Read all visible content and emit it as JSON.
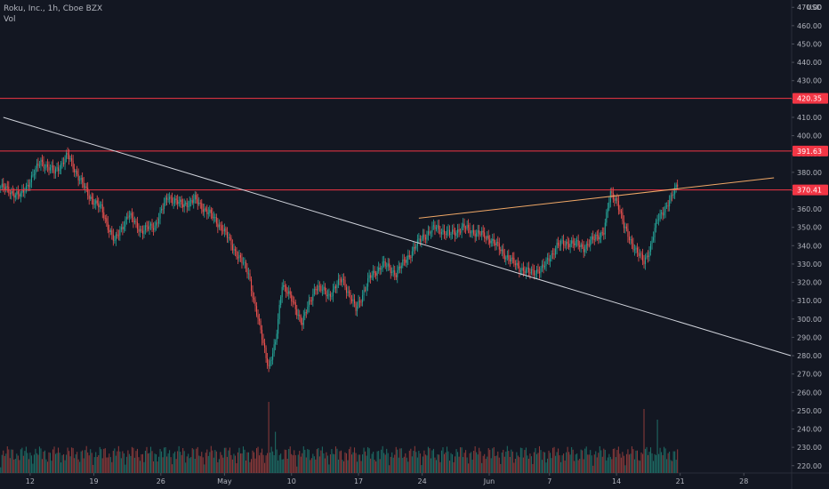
{
  "header": {
    "title": "Roku, Inc., 1h, Cboe BZX",
    "volume_label": "Vol",
    "currency": "USD"
  },
  "colors": {
    "background": "#131722",
    "up": "#26a69a",
    "down": "#ef5350",
    "volume_up": "#1e6b64",
    "volume_down": "#8a3a3a",
    "level_line": "#f23645",
    "trend_down": "#d1d4dc",
    "trend_up": "#f0a867",
    "grid": "#1e222d",
    "axis_text": "#b2b5be"
  },
  "chart_data": {
    "type": "candlestick",
    "title": "Roku, Inc., 1h, Cboe BZX",
    "ylim": [
      216,
      474
    ],
    "y_ticks": [
      470,
      460,
      450,
      440,
      430,
      420,
      410,
      400,
      390,
      380,
      370,
      360,
      350,
      340,
      330,
      320,
      310,
      300,
      290,
      280,
      270,
      260,
      250,
      240,
      230,
      220
    ],
    "y_tick_labels": [
      "470.00",
      "460.00",
      "450.00",
      "440.00",
      "430.00",
      "420.00",
      "410.00",
      "400.00",
      "390.00",
      "380.00",
      "370.00",
      "360.00",
      "350.00",
      "340.00",
      "330.00",
      "320.00",
      "310.00",
      "300.00",
      "290.00",
      "280.00",
      "270.00",
      "260.00",
      "250.00",
      "240.00",
      "230.00",
      "220.00"
    ],
    "x_ticks": [
      {
        "label": "12",
        "bar": 4
      },
      {
        "label": "19",
        "bar": 13.5
      },
      {
        "label": "26",
        "bar": 23.5
      },
      {
        "label": "May",
        "bar": 33
      },
      {
        "label": "10",
        "bar": 43
      },
      {
        "label": "17",
        "bar": 53
      },
      {
        "label": "24",
        "bar": 62.5
      },
      {
        "label": "Jun",
        "bar": 72.5
      },
      {
        "label": "7",
        "bar": 81.5
      },
      {
        "label": "14",
        "bar": 91.5
      },
      {
        "label": "21",
        "bar": 101
      },
      {
        "label": "28",
        "bar": 110.5
      }
    ],
    "x_bars_visible": 118,
    "price_keypoints": [
      [
        0,
        372
      ],
      [
        3,
        367
      ],
      [
        6,
        386
      ],
      [
        8,
        380
      ],
      [
        10,
        389
      ],
      [
        13,
        368
      ],
      [
        15,
        360
      ],
      [
        17,
        342
      ],
      [
        19,
        357
      ],
      [
        21,
        348
      ],
      [
        23,
        351
      ],
      [
        25,
        367
      ],
      [
        27,
        362
      ],
      [
        29,
        365
      ],
      [
        31,
        358
      ],
      [
        33,
        350
      ],
      [
        35,
        337
      ],
      [
        37,
        325
      ],
      [
        38,
        306
      ],
      [
        40,
        274
      ],
      [
        41,
        286
      ],
      [
        42,
        320
      ],
      [
        44,
        306
      ],
      [
        45,
        298
      ],
      [
        47,
        318
      ],
      [
        49,
        313
      ],
      [
        51,
        322
      ],
      [
        53,
        305
      ],
      [
        55,
        322
      ],
      [
        57,
        330
      ],
      [
        59,
        325
      ],
      [
        61,
        335
      ],
      [
        63,
        345
      ],
      [
        65,
        350
      ],
      [
        67,
        346
      ],
      [
        69,
        350
      ],
      [
        71,
        347
      ],
      [
        73,
        344
      ],
      [
        75,
        336
      ],
      [
        77,
        329
      ],
      [
        79,
        325
      ],
      [
        81,
        328
      ],
      [
        83,
        340
      ],
      [
        85,
        342
      ],
      [
        87,
        339
      ],
      [
        89,
        345
      ],
      [
        90,
        348
      ],
      [
        91,
        368
      ],
      [
        92,
        365
      ],
      [
        93,
        350
      ],
      [
        95,
        336
      ],
      [
        96,
        331
      ],
      [
        97,
        340
      ],
      [
        98,
        354
      ],
      [
        99,
        360
      ],
      [
        100,
        365
      ],
      [
        101,
        374
      ]
    ],
    "volume_spikes": [
      {
        "bar": 40,
        "value": 1.0
      },
      {
        "bar": 41,
        "value": 0.58
      },
      {
        "bar": 96,
        "value": 0.9
      },
      {
        "bar": 98,
        "value": 0.75
      }
    ],
    "horizontal_levels": [
      {
        "value": 420.35,
        "label": "420.35"
      },
      {
        "value": 391.63,
        "label": "391.63"
      },
      {
        "value": 370.41,
        "label": "370.41"
      }
    ],
    "trendlines": [
      {
        "name": "descending",
        "from": [
          0,
          410
        ],
        "to": [
          118,
          280
        ]
      },
      {
        "name": "ascending",
        "from": [
          62,
          355
        ],
        "to": [
          115,
          377
        ]
      }
    ],
    "grid": false,
    "legend": "none"
  }
}
